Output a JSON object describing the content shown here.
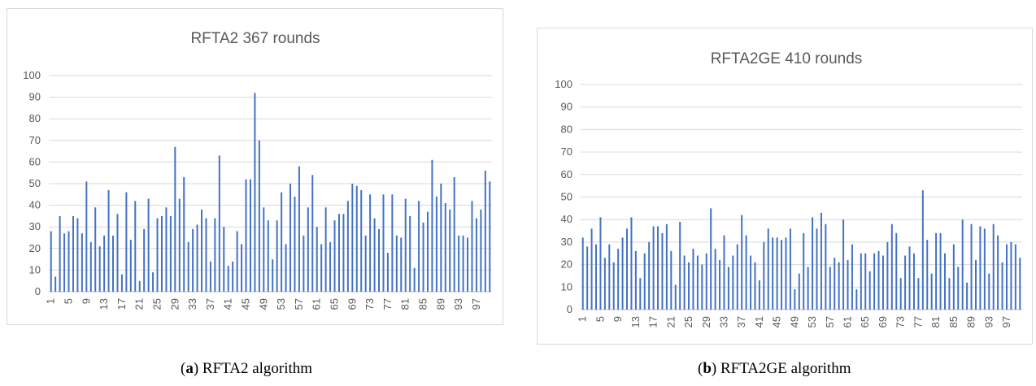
{
  "chart_data": [
    {
      "type": "bar",
      "title": "RFTA2 367 rounds",
      "xlabel": "",
      "ylabel": "",
      "ylim": [
        0,
        100
      ],
      "yticks": [
        0,
        10,
        20,
        30,
        40,
        50,
        60,
        70,
        80,
        90,
        100
      ],
      "x": [
        1,
        2,
        3,
        4,
        5,
        6,
        7,
        8,
        9,
        10,
        11,
        12,
        13,
        14,
        15,
        16,
        17,
        18,
        19,
        20,
        21,
        22,
        23,
        24,
        25,
        26,
        27,
        28,
        29,
        30,
        31,
        32,
        33,
        34,
        35,
        36,
        37,
        38,
        39,
        40,
        41,
        42,
        43,
        44,
        45,
        46,
        47,
        48,
        49,
        50,
        51,
        52,
        53,
        54,
        55,
        56,
        57,
        58,
        59,
        60,
        61,
        62,
        63,
        64,
        65,
        66,
        67,
        68,
        69,
        70,
        71,
        72,
        73,
        74,
        75,
        76,
        77,
        78,
        79,
        80,
        81,
        82,
        83,
        84,
        85,
        86,
        87,
        88,
        89,
        90,
        91,
        92,
        93,
        94,
        95,
        96,
        97,
        98,
        99,
        100
      ],
      "xtick_labels": [
        "1",
        "5",
        "9",
        "13",
        "17",
        "21",
        "25",
        "29",
        "33",
        "37",
        "41",
        "45",
        "49",
        "53",
        "57",
        "61",
        "65",
        "69",
        "73",
        "77",
        "81",
        "85",
        "89",
        "93",
        "97"
      ],
      "values": [
        28,
        7,
        35,
        27,
        28,
        35,
        34,
        27,
        51,
        23,
        39,
        21,
        26,
        47,
        26,
        36,
        8,
        46,
        24,
        42,
        5,
        29,
        43,
        9,
        34,
        35,
        39,
        35,
        67,
        43,
        53,
        23,
        29,
        31,
        38,
        34,
        14,
        34,
        63,
        30,
        12,
        14,
        28,
        22,
        52,
        52,
        92,
        70,
        39,
        33,
        15,
        33,
        46,
        22,
        50,
        44,
        58,
        26,
        39,
        54,
        30,
        22,
        39,
        23,
        33,
        36,
        36,
        42,
        50,
        49,
        47,
        26,
        45,
        34,
        29,
        45,
        18,
        45,
        26,
        25,
        43,
        35,
        11,
        42,
        32,
        37,
        61,
        44,
        50,
        41,
        38,
        53,
        26,
        26,
        25,
        42,
        34,
        38,
        56,
        51
      ],
      "grid": true,
      "legend": "none",
      "bar_color": "#4472c4"
    },
    {
      "type": "bar",
      "title": "RFTA2GE 410 rounds",
      "xlabel": "",
      "ylabel": "",
      "ylim": [
        0,
        100
      ],
      "yticks": [
        0,
        10,
        20,
        30,
        40,
        50,
        60,
        70,
        80,
        90,
        100
      ],
      "x": [
        1,
        2,
        3,
        4,
        5,
        6,
        7,
        8,
        9,
        10,
        11,
        12,
        13,
        14,
        15,
        16,
        17,
        18,
        19,
        20,
        21,
        22,
        23,
        24,
        25,
        26,
        27,
        28,
        29,
        30,
        31,
        32,
        33,
        34,
        35,
        36,
        37,
        38,
        39,
        40,
        41,
        42,
        43,
        44,
        45,
        46,
        47,
        48,
        49,
        50,
        51,
        52,
        53,
        54,
        55,
        56,
        57,
        58,
        59,
        60,
        61,
        62,
        63,
        64,
        65,
        66,
        67,
        68,
        69,
        70,
        71,
        72,
        73,
        74,
        75,
        76,
        77,
        78,
        79,
        80,
        81,
        82,
        83,
        84,
        85,
        86,
        87,
        88,
        89,
        90,
        91,
        92,
        93,
        94,
        95,
        96,
        97,
        98,
        99,
        100
      ],
      "xtick_labels": [
        "1",
        "5",
        "9",
        "13",
        "17",
        "21",
        "25",
        "29",
        "33",
        "37",
        "41",
        "45",
        "49",
        "53",
        "57",
        "61",
        "65",
        "69",
        "73",
        "77",
        "81",
        "85",
        "89",
        "93",
        "97"
      ],
      "values": [
        32,
        28,
        36,
        29,
        41,
        23,
        29,
        21,
        27,
        32,
        36,
        41,
        26,
        14,
        25,
        30,
        37,
        37,
        34,
        38,
        26,
        11,
        39,
        24,
        21,
        27,
        24,
        20,
        25,
        45,
        27,
        22,
        33,
        19,
        24,
        29,
        42,
        33,
        24,
        21,
        13,
        30,
        36,
        32,
        32,
        31,
        32,
        36,
        9,
        16,
        34,
        19,
        41,
        36,
        43,
        38,
        19,
        23,
        21,
        40,
        22,
        29,
        9,
        25,
        25,
        17,
        25,
        26,
        24,
        30,
        38,
        34,
        14,
        24,
        28,
        25,
        14,
        53,
        31,
        16,
        34,
        34,
        25,
        14,
        29,
        19,
        40,
        12,
        38,
        22,
        37,
        36,
        16,
        38,
        33,
        21,
        29,
        30,
        29,
        23
      ],
      "grid": true,
      "legend": "none",
      "bar_color": "#4472c4"
    }
  ],
  "captions": {
    "a_label": "a",
    "a_text": "RFTA2 algorithm",
    "b_label": "b",
    "b_text": "RFTA2GE algorithm"
  }
}
